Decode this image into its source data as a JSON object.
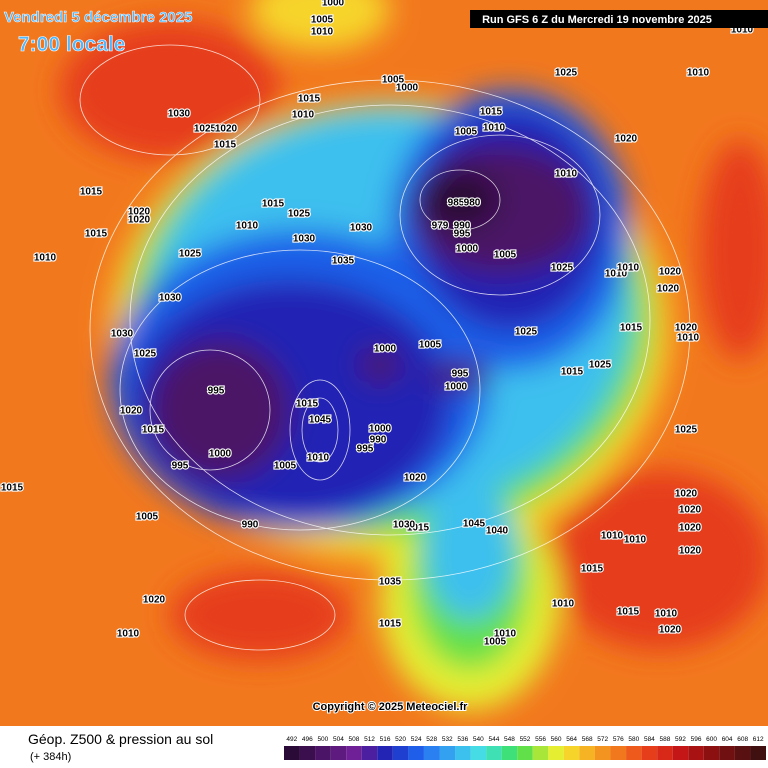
{
  "header": {
    "date": "Vendredi 5 décembre 2025",
    "time": "7:00 locale",
    "run": "Run GFS 6 Z du Mercredi 19 novembre 2025"
  },
  "footer": {
    "title": "Géop. Z500 & pression au sol",
    "lead": "(+ 384h)",
    "copyright": "Copyright © 2025 Meteociel.fr"
  },
  "colorbar": {
    "ticks": [
      492,
      496,
      500,
      504,
      508,
      512,
      516,
      520,
      524,
      528,
      532,
      536,
      540,
      544,
      548,
      552,
      556,
      560,
      564,
      568,
      572,
      576,
      580,
      584,
      588,
      592,
      596,
      600,
      604,
      608,
      612
    ],
    "colors": [
      "#2a0a36",
      "#3b0f4e",
      "#4c1466",
      "#5e1a7e",
      "#6f2096",
      "#4b1fa0",
      "#2424b4",
      "#1f3fd0",
      "#1f5ee8",
      "#2a80f0",
      "#33a0f0",
      "#3cc0ee",
      "#46dce6",
      "#3ee0b4",
      "#3ee07a",
      "#62e04a",
      "#a8e63a",
      "#e6ee32",
      "#f6d42a",
      "#f6b424",
      "#f49420",
      "#f2781e",
      "#ee5a1c",
      "#e63e1a",
      "#d82818",
      "#c41616",
      "#a81212",
      "#8c1010",
      "#701010",
      "#581010",
      "#401010"
    ]
  },
  "pressure_labels": [
    "1000",
    "1005",
    "1010",
    "1010",
    "1025",
    "1010",
    "1005",
    "1000",
    "1015",
    "1010",
    "1030",
    "1015",
    "1005",
    "1010",
    "1025",
    "1020",
    "1015",
    "1020",
    "1010",
    "1015",
    "985",
    "980",
    "1015",
    "1025",
    "1020",
    "1020",
    "1015",
    "1030",
    "1030",
    "979",
    "990",
    "995",
    "1000",
    "1010",
    "1025",
    "1025",
    "1010",
    "1010",
    "1020",
    "1005",
    "1035",
    "1010",
    "1030",
    "1015",
    "1030",
    "1020",
    "1025",
    "1020",
    "1000",
    "1005",
    "1025",
    "995",
    "1015",
    "1025",
    "1020",
    "1010",
    "995",
    "1000",
    "1015",
    "1045",
    "1000",
    "990",
    "995",
    "1020",
    "1025",
    "1015",
    "1000",
    "1005",
    "1010",
    "1015",
    "1020",
    "1005",
    "995",
    "990",
    "1045",
    "1040",
    "1015",
    "1020",
    "1010",
    "1010",
    "1015",
    "1020",
    "1035",
    "1030",
    "1020",
    "1010",
    "1010",
    "1005",
    "1015",
    "1015",
    "1010",
    "1010",
    "1020",
    "1020"
  ]
}
